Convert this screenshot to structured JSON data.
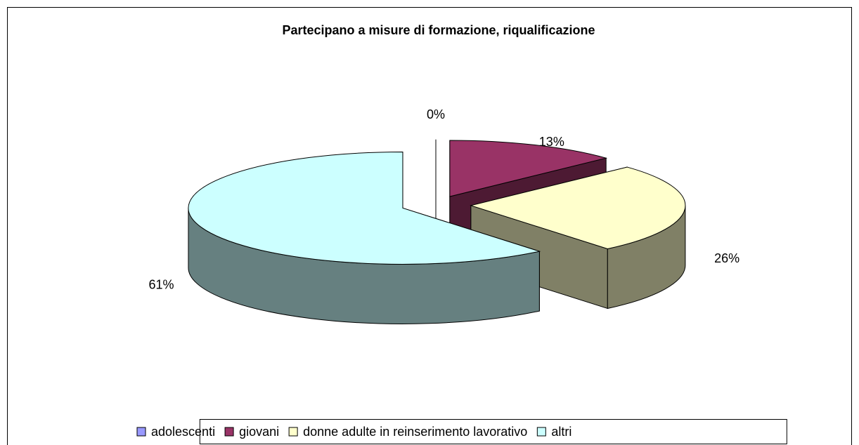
{
  "chart_data": {
    "type": "pie",
    "title": "Partecipano a misure di formazione, riqualificazione",
    "categories": [
      "adolescenti",
      "giovani",
      "donne adulte in reinserimento lavorativo",
      "altri"
    ],
    "values": [
      0,
      13,
      26,
      61
    ],
    "value_labels": [
      "0%",
      "13%",
      "26%",
      "61%"
    ],
    "colors": [
      "#9999ff",
      "#993366",
      "#ffffcc",
      "#ccffff"
    ],
    "legend": "bottom"
  }
}
